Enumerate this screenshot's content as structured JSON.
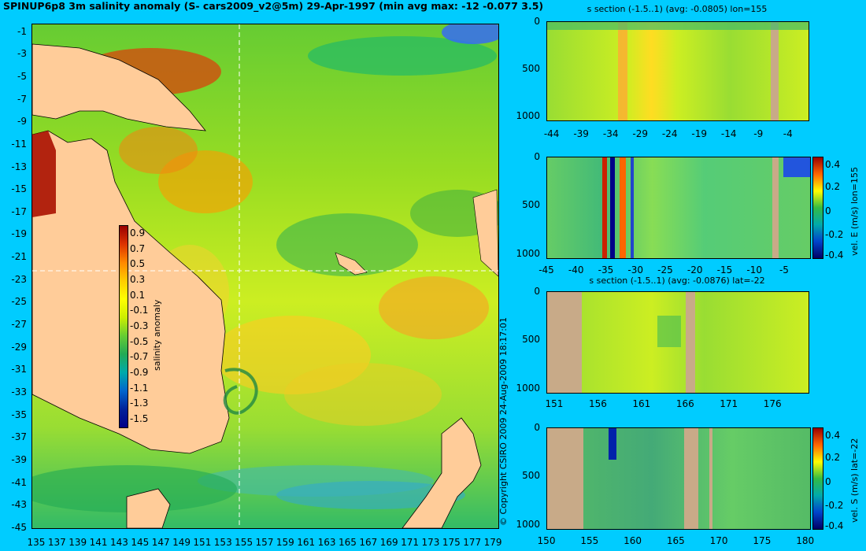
{
  "title": "SPINUP6p8 3m salinity anomaly (S- cars2009_v2@5m) 29-Apr-1997 (min avg max: -12 -0.077 3.5)",
  "copyright": "© Copyright CSIRO 2009   24-Aug-2009 18:17:01",
  "colors": {
    "background": "#00ccff",
    "land": "#ffcc99",
    "section_land": "#c8aa88"
  },
  "chart_data": [
    {
      "type": "heatmap",
      "name": "map",
      "title": "SPINUP6p8 3m salinity anomaly (S- cars2009_v2@5m) 29-Apr-1997 (min avg max: -12 -0.077 3.5)",
      "x_ticks": [
        "135",
        "137",
        "139",
        "141",
        "143",
        "145",
        "147",
        "149",
        "151",
        "153",
        "155",
        "157",
        "159",
        "161",
        "163",
        "165",
        "167",
        "169",
        "171",
        "173",
        "175",
        "177",
        "179"
      ],
      "y_ticks": [
        "-1",
        "-3",
        "-5",
        "-7",
        "-9",
        "-11",
        "-13",
        "-15",
        "-17",
        "-19",
        "-21",
        "-23",
        "-25",
        "-27",
        "-29",
        "-31",
        "-33",
        "-35",
        "-37",
        "-39",
        "-41",
        "-43",
        "-45"
      ],
      "xlim": [
        135,
        180
      ],
      "ylim": [
        -45,
        0
      ],
      "crosshair": {
        "lon": 155,
        "lat": -22
      },
      "colorbar": {
        "label": "salinity anomaly",
        "ticks": [
          "0.9",
          "0.7",
          "0.5",
          "0.3",
          "0.1",
          "-0.1",
          "-0.3",
          "-0.5",
          "-0.7",
          "-0.9",
          "-1.1",
          "-1.3",
          "-1.5"
        ],
        "range": [
          -1.5,
          1.0
        ]
      }
    },
    {
      "type": "heatmap",
      "name": "s-section-lon",
      "title": "s section (-1.5..1) (avg: -0.0805) lon=155",
      "x_ticks": [
        "-44",
        "-39",
        "-34",
        "-29",
        "-24",
        "-19",
        "-14",
        "-9",
        "-4"
      ],
      "y_ticks": [
        "0",
        "500",
        "1000"
      ]
    },
    {
      "type": "heatmap",
      "name": "vel-e-lon",
      "x_ticks": [
        "-45",
        "-40",
        "-35",
        "-30",
        "-25",
        "-20",
        "-15",
        "-10",
        "-5"
      ],
      "y_ticks": [
        "0",
        "500",
        "1000"
      ],
      "colorbar": {
        "label": "vel. E (m/s) lon=155",
        "ticks": [
          "0.4",
          "0.2",
          "0",
          "-0.2",
          "-0.4"
        ]
      }
    },
    {
      "type": "heatmap",
      "name": "s-section-lat",
      "title": "s section (-1.5..1) (avg: -0.0876) lat=-22",
      "x_ticks": [
        "151",
        "156",
        "161",
        "166",
        "171",
        "176"
      ],
      "y_ticks": [
        "0",
        "500",
        "1000"
      ]
    },
    {
      "type": "heatmap",
      "name": "vel-s-lat",
      "x_ticks": [
        "150",
        "155",
        "160",
        "165",
        "170",
        "175",
        "180"
      ],
      "y_ticks": [
        "0",
        "500",
        "1000"
      ],
      "colorbar": {
        "label": "vel. S (m/s) lat=-22",
        "ticks": [
          "0.4",
          "0.2",
          "0",
          "-0.2",
          "-0.4"
        ]
      }
    }
  ]
}
